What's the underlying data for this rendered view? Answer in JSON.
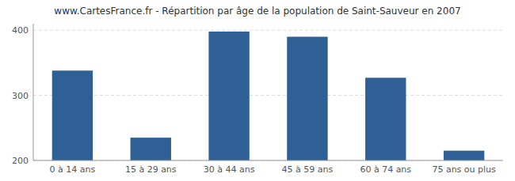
{
  "chart_data": {
    "type": "bar",
    "title": "www.CartesFrance.fr - Répartition par âge de la population de Saint-Sauveur en 2007",
    "categories": [
      "0 à 14 ans",
      "15 à 29 ans",
      "30 à 44 ans",
      "45 à 59 ans",
      "60 à 74 ans",
      "75 ans ou plus"
    ],
    "values": [
      338,
      235,
      398,
      390,
      327,
      215
    ],
    "color": "#2E6096",
    "ylim": [
      200,
      410
    ],
    "yticks": [
      200,
      300,
      400
    ],
    "grid": true
  }
}
